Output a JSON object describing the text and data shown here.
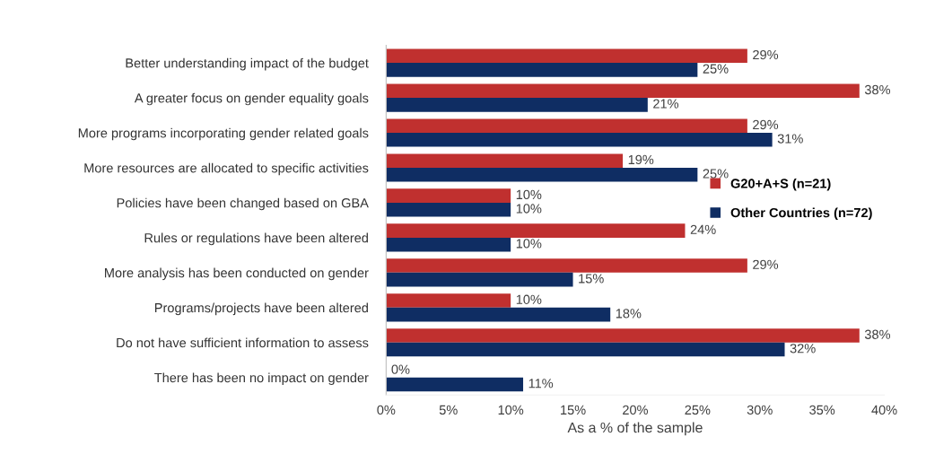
{
  "chart_data": {
    "type": "bar",
    "orientation": "horizontal",
    "xlabel": "As a % of the sample",
    "categories": [
      "Better understanding impact of the budget",
      "A greater focus on gender equality goals",
      "More programs incorporating gender related goals",
      "More resources are allocated to specific activities",
      "Policies have been changed based on GBA",
      "Rules or regulations have been altered",
      "More analysis has been conducted on gender",
      "Programs/projects have been altered",
      "Do not have sufficient information to assess",
      "There has been no impact on gender"
    ],
    "series": [
      {
        "name": "G20+A+S (n=21)",
        "color": "#c0302f",
        "values": [
          29,
          38,
          29,
          19,
          10,
          24,
          29,
          10,
          38,
          0
        ],
        "value_labels": [
          "29%",
          "38%",
          "29%",
          "19%",
          "10%",
          "24%",
          "29%",
          "10%",
          "38%",
          "0%"
        ]
      },
      {
        "name": "Other Countries (n=72)",
        "color": "#0f2d63",
        "values": [
          25,
          21,
          31,
          25,
          10,
          10,
          15,
          18,
          32,
          11
        ],
        "value_labels": [
          "25%",
          "21%",
          "31%",
          "25%",
          "10%",
          "10%",
          "15%",
          "18%",
          "32%",
          "11%"
        ]
      }
    ],
    "xlim": [
      0,
      40
    ],
    "xticks": [
      {
        "value": 0,
        "label": "0%"
      },
      {
        "value": 5,
        "label": "5%"
      },
      {
        "value": 10,
        "label": "10%"
      },
      {
        "value": 15,
        "label": "15%"
      },
      {
        "value": 20,
        "label": "20%"
      },
      {
        "value": 25,
        "label": "25%"
      },
      {
        "value": 30,
        "label": "30%"
      },
      {
        "value": 35,
        "label": "35%"
      },
      {
        "value": 40,
        "label": "40%"
      }
    ],
    "legend": "right",
    "grid": false
  }
}
